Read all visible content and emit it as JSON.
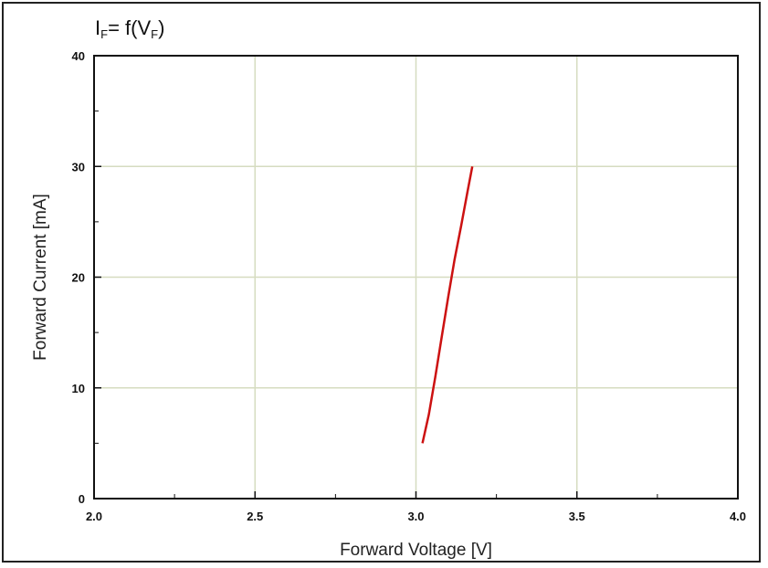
{
  "chart_data": {
    "type": "line",
    "title_parts": {
      "i": "I",
      "i_sub": "F",
      "mid": "= f(V",
      "v_sub": "F",
      "end": ")"
    },
    "xlabel": "Forward Voltage [V]",
    "ylabel": "Forward Current [mA]",
    "xlim": [
      2.0,
      4.0
    ],
    "ylim": [
      0,
      40
    ],
    "x_ticks": [
      "2.0",
      "2.5",
      "3.0",
      "3.5",
      "4.0"
    ],
    "y_ticks": [
      "0",
      "10",
      "20",
      "30",
      "40"
    ],
    "grid": true,
    "series": [
      {
        "color": "#cc1111",
        "x": [
          3.02,
          3.04,
          3.06,
          3.08,
          3.1,
          3.12,
          3.14,
          3.16,
          3.175
        ],
        "y": [
          5,
          7.6,
          11,
          14.6,
          18.2,
          21.6,
          24.6,
          27.7,
          30
        ]
      }
    ]
  }
}
